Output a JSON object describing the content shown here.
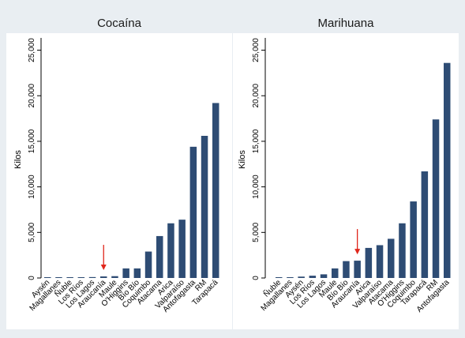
{
  "chart_data": [
    {
      "type": "bar",
      "title": "Cocaína",
      "xlabel": "",
      "ylabel": "Kilos",
      "ylim": [
        0,
        26000
      ],
      "yticks": [
        0,
        5000,
        10000,
        15000,
        20000,
        25000
      ],
      "ytick_labels": [
        "0",
        "5,000",
        "10,000",
        "15,000",
        "20,000",
        "25,000"
      ],
      "grid": false,
      "bar_color": "#2e4c74",
      "annotation": {
        "type": "arrow",
        "color": "#e0261b",
        "points_to": "Araucanía"
      },
      "categories": [
        "Aysén",
        "Magallanes",
        "Ñuble",
        "Los Ríos",
        "Los Lagos",
        "Araucanía",
        "Maule",
        "O'Higgins",
        "Bío Bío",
        "Coquimbo",
        "Atacama",
        "Arica",
        "Valparaíso",
        "Antofagasta",
        "RM",
        "Tarapacá"
      ],
      "values": [
        10,
        20,
        40,
        60,
        100,
        170,
        200,
        1050,
        1050,
        2900,
        4600,
        6000,
        6400,
        14400,
        15600,
        19200
      ]
    },
    {
      "type": "bar",
      "title": "Marihuana",
      "xlabel": "",
      "ylabel": "Kilos",
      "ylim": [
        0,
        26000
      ],
      "yticks": [
        0,
        5000,
        10000,
        15000,
        20000,
        25000
      ],
      "ytick_labels": [
        "0",
        "5,000",
        "10,000",
        "15,000",
        "20,000",
        "25,000"
      ],
      "grid": false,
      "bar_color": "#2e4c74",
      "annotation": {
        "type": "arrow",
        "color": "#e0261b",
        "points_to": "Araucanía"
      },
      "categories": [
        "Ñuble",
        "Magallanes",
        "Aysén",
        "Los Ríos",
        "Los Lagos",
        "Maule",
        "Bío Bío",
        "Araucanía",
        "Arica",
        "Valparaíso",
        "Atacama",
        "O'Higgins",
        "Coquimbo",
        "Tarapacá",
        "RM",
        "Antofagasta"
      ],
      "values": [
        50,
        80,
        150,
        250,
        400,
        1050,
        1850,
        1900,
        3300,
        3600,
        4300,
        6000,
        8400,
        11700,
        17400,
        23600
      ]
    }
  ]
}
